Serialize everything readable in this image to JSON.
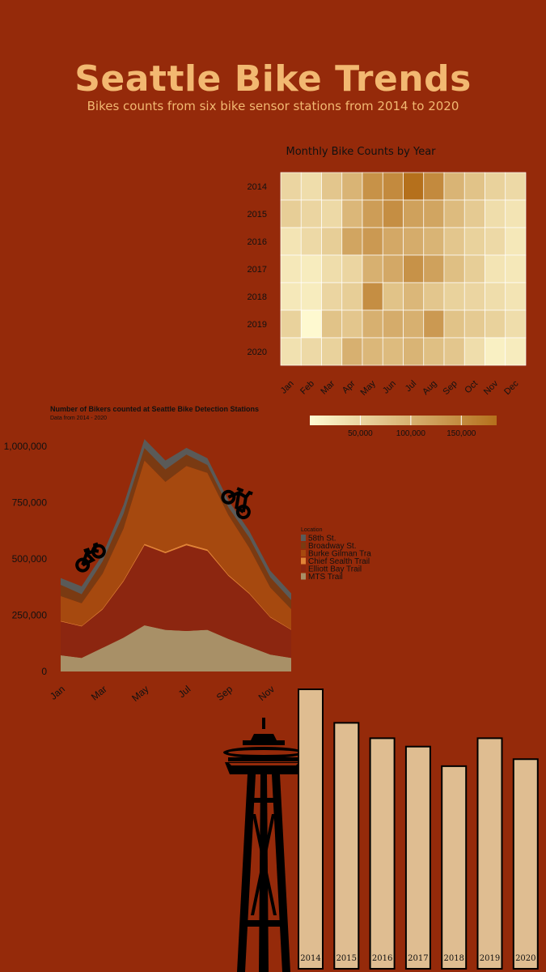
{
  "header": {
    "title": "Seattle Bike Trends",
    "subtitle": "Bikes counts from six bike sensor stations from 2014 to 2020"
  },
  "colors": {
    "background": "#952a0a",
    "title": "#f2b871",
    "heatmap_low": "#fffbd2",
    "heatmap_high": "#b5701c",
    "bar_fill": "#dfbd91"
  },
  "icons": [
    "bicycle-icon",
    "bicycle-icon",
    "space-needle-icon"
  ],
  "chart_data": [
    {
      "type": "heatmap",
      "title": "Monthly Bike Counts by Year",
      "x": [
        "Jan",
        "Feb",
        "Mar",
        "Apr",
        "May",
        "Jun",
        "Jul",
        "Aug",
        "Sep",
        "Oct",
        "Nov",
        "Dec"
      ],
      "y": [
        "2014",
        "2015",
        "2016",
        "2017",
        "2018",
        "2019",
        "2020"
      ],
      "values": [
        [
          50000,
          40000,
          70000,
          95000,
          140000,
          150000,
          185000,
          150000,
          95000,
          75000,
          55000,
          45000
        ],
        [
          60000,
          50000,
          45000,
          90000,
          125000,
          145000,
          120000,
          115000,
          85000,
          65000,
          40000,
          30000
        ],
        [
          30000,
          45000,
          60000,
          115000,
          130000,
          110000,
          105000,
          95000,
          70000,
          55000,
          45000,
          25000
        ],
        [
          25000,
          20000,
          40000,
          50000,
          100000,
          110000,
          140000,
          120000,
          80000,
          60000,
          30000,
          25000
        ],
        [
          25000,
          20000,
          50000,
          60000,
          145000,
          75000,
          90000,
          70000,
          55000,
          50000,
          40000,
          30000
        ],
        [
          55000,
          2000,
          75000,
          70000,
          100000,
          105000,
          100000,
          130000,
          75000,
          65000,
          55000,
          40000
        ],
        [
          35000,
          45000,
          55000,
          100000,
          90000,
          85000,
          95000,
          80000,
          70000,
          40000,
          15000,
          20000
        ]
      ],
      "colorbar_ticks": [
        "50,000",
        "100,000",
        "150,000"
      ],
      "colorbar_range": [
        0,
        185000
      ]
    },
    {
      "type": "area",
      "title": "Number of Bikers counted at Seattle Bike Detection Stations",
      "subtitle": "Data from 2014 - 2020",
      "categories": [
        "Jan",
        "Feb",
        "Mar",
        "Apr",
        "May",
        "Jun",
        "Jul",
        "Aug",
        "Sep",
        "Oct",
        "Nov",
        "Dec"
      ],
      "x_tick_labels": [
        "Jan",
        "Mar",
        "May",
        "Jul",
        "Sep",
        "Nov"
      ],
      "y_tick_labels": [
        "0",
        "250,000",
        "500,000",
        "750,000",
        "1,000,000"
      ],
      "ylim": [
        0,
        1000000
      ],
      "legend_title": "Location",
      "series": [
        {
          "name": "MTS Trail",
          "color": "#a89067",
          "values": [
            72000,
            60000,
            105000,
            150000,
            205000,
            185000,
            180000,
            185000,
            145000,
            110000,
            75000,
            60000
          ]
        },
        {
          "name": "Elliott Bay Trail",
          "color": "#8c2610",
          "values": [
            150000,
            140000,
            170000,
            250000,
            355000,
            340000,
            380000,
            350000,
            280000,
            235000,
            165000,
            125000
          ]
        },
        {
          "name": "Chief Sealth Trail",
          "color": "#e08437",
          "values": [
            3000,
            3000,
            4000,
            5000,
            7000,
            7000,
            8000,
            7000,
            5000,
            4000,
            3000,
            2000
          ]
        },
        {
          "name": "Burke Gilman Trail",
          "color": "#a6490f",
          "values": [
            110000,
            100000,
            155000,
            230000,
            370000,
            310000,
            345000,
            340000,
            265000,
            200000,
            130000,
            90000
          ]
        },
        {
          "name": "Broadway St.",
          "color": "#7a3a12",
          "values": [
            50000,
            40000,
            55000,
            65000,
            55000,
            55000,
            50000,
            35000,
            35000,
            45000,
            45000,
            40000
          ]
        },
        {
          "name": "58th St.",
          "color": "#5a5a58",
          "values": [
            30000,
            35000,
            30000,
            40000,
            40000,
            40000,
            30000,
            30000,
            30000,
            30000,
            30000,
            30000
          ]
        }
      ],
      "legend_labels": [
        "58th St.",
        "Broadway St.",
        "Burke Gilman Tra",
        "Chief Sealth Trail",
        "Elliott Bay Trail",
        "MTS Trail"
      ],
      "legend_colors": [
        "#5a5a58",
        "#7a3a12",
        "#a6490f",
        "#e08437",
        "#8c2610",
        "#a89067"
      ]
    },
    {
      "type": "bar",
      "categories": [
        "2014",
        "2015",
        "2016",
        "2017",
        "2018",
        "2019",
        "2020"
      ],
      "values": [
        1000,
        880,
        825,
        795,
        725,
        825,
        750
      ],
      "ylim": [
        0,
        1000
      ]
    }
  ]
}
